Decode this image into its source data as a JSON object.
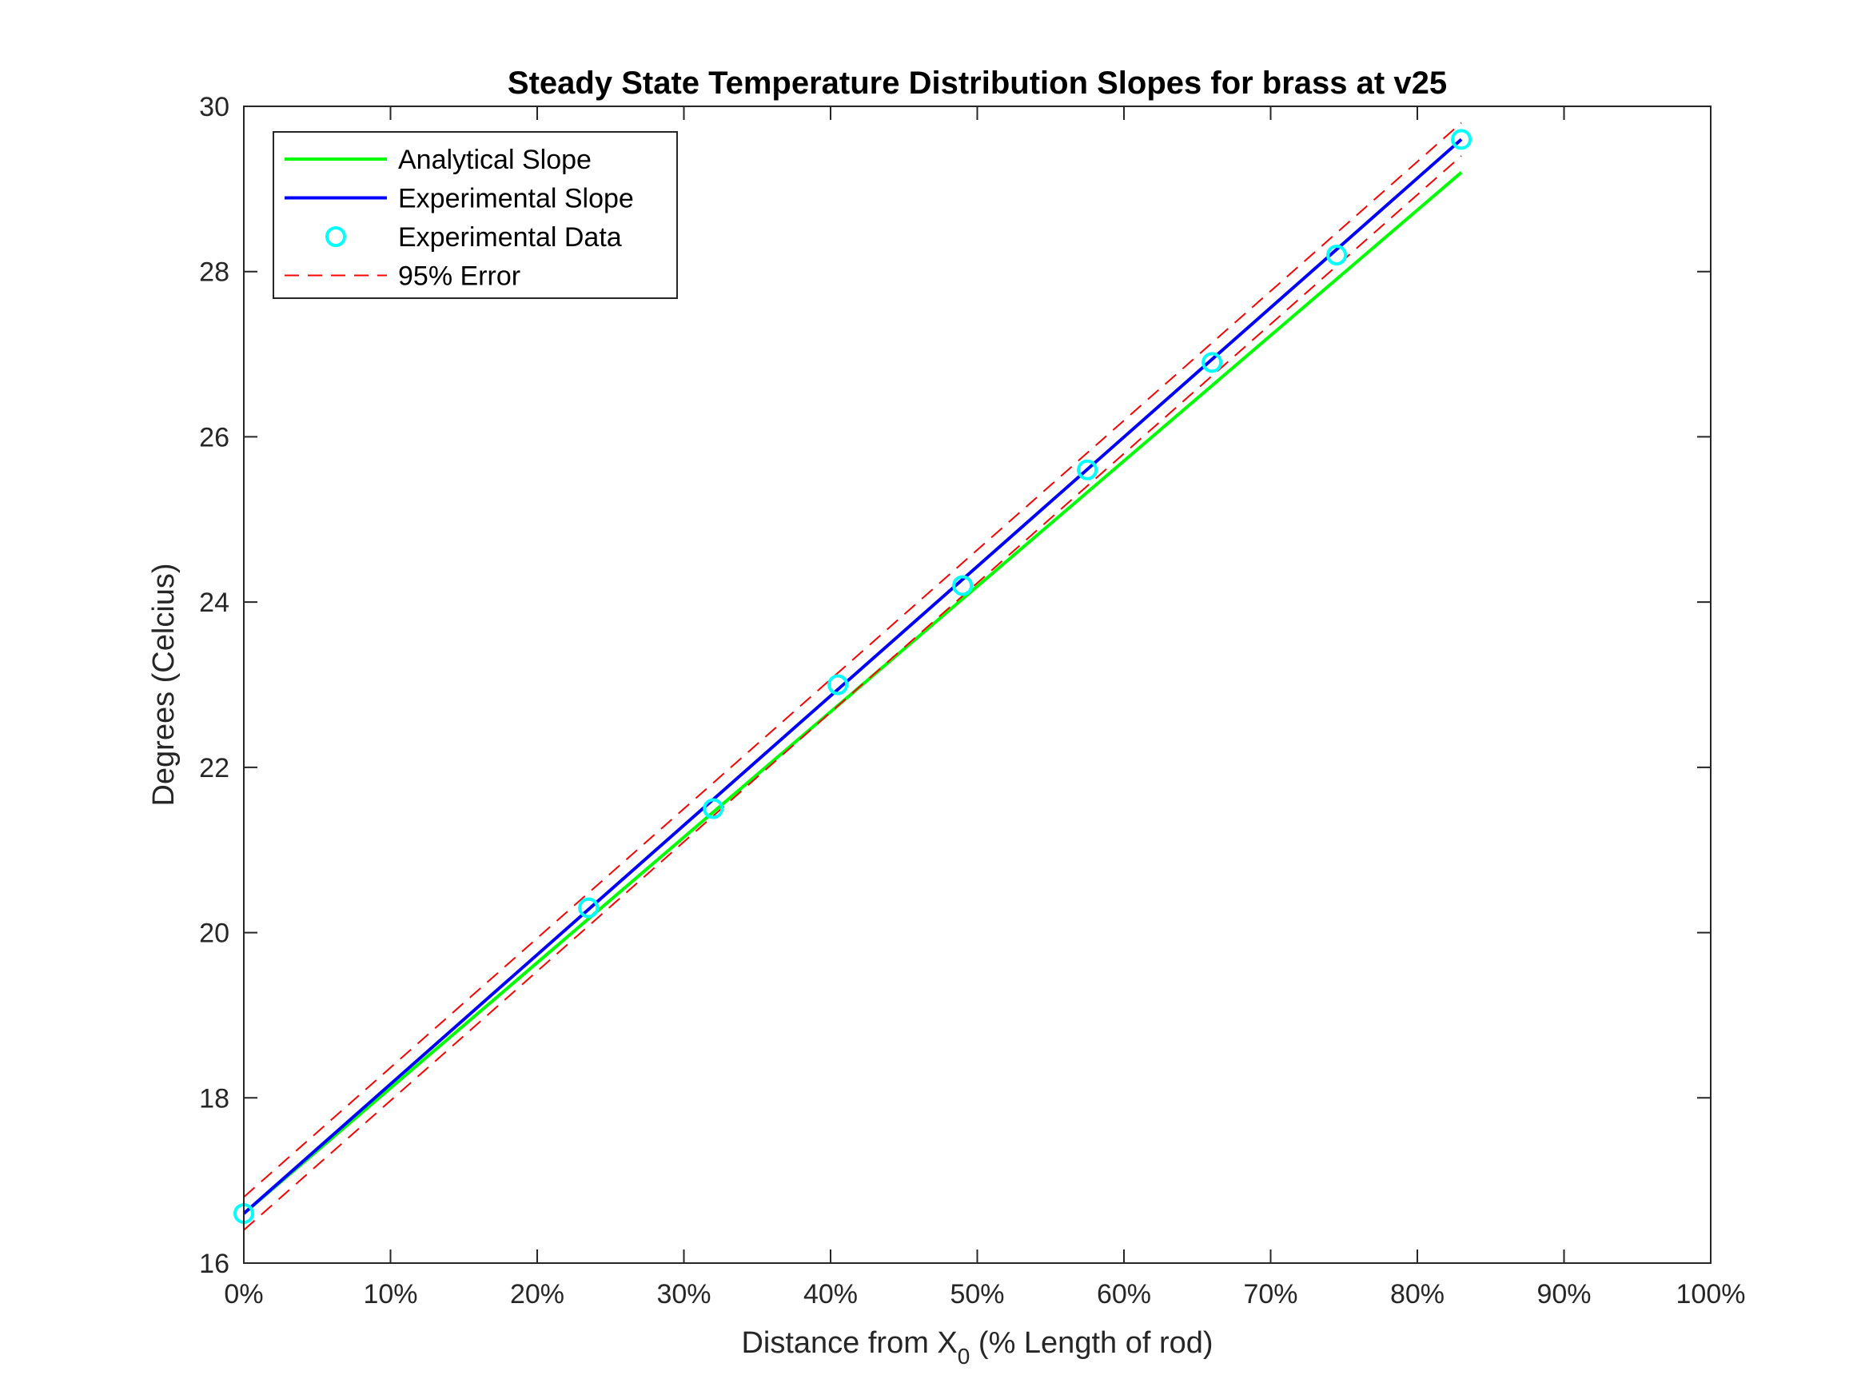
{
  "chart_data": {
    "type": "line",
    "title": "Steady State Temperature Distribution Slopes for brass at v25",
    "xlabel": {
      "prefix": "Distance from X",
      "subscript": "0",
      "suffix": " (% Length of rod)"
    },
    "ylabel": "Degrees (Celcius)",
    "xlim": [
      0,
      1
    ],
    "ylim": [
      16,
      30
    ],
    "x_ticks": [
      0,
      0.1,
      0.2,
      0.3,
      0.4,
      0.5,
      0.6,
      0.7,
      0.8,
      0.9,
      1.0
    ],
    "x_tick_labels": [
      "0%",
      "10%",
      "20%",
      "30%",
      "40%",
      "50%",
      "60%",
      "70%",
      "80%",
      "90%",
      "100%"
    ],
    "y_ticks": [
      16,
      18,
      20,
      22,
      24,
      26,
      28,
      30
    ],
    "y_tick_labels": [
      "16",
      "18",
      "20",
      "22",
      "24",
      "26",
      "28",
      "30"
    ],
    "grid": false,
    "legend_position": "top-left",
    "series": [
      {
        "name": "Analytical Slope",
        "style": "solid",
        "color": "#00ff00",
        "marker": "none",
        "x": [
          0,
          0.83
        ],
        "y": [
          16.6,
          29.2
        ]
      },
      {
        "name": "Experimental Slope",
        "style": "solid",
        "color": "#0000ff",
        "marker": "none",
        "x": [
          0,
          0.83
        ],
        "y": [
          16.6,
          29.6
        ]
      },
      {
        "name": "Experimental Data",
        "style": "none",
        "color": "#00ffff",
        "marker": "circle",
        "x": [
          0,
          0.235,
          0.32,
          0.405,
          0.49,
          0.575,
          0.66,
          0.745,
          0.83
        ],
        "y": [
          16.6,
          20.3,
          21.5,
          23.0,
          24.2,
          25.6,
          26.9,
          28.2,
          29.6
        ]
      },
      {
        "name": "95% Error",
        "style": "dashed",
        "color": "#ff0000",
        "marker": "none",
        "bounds": [
          {
            "x": [
              0,
              0.83
            ],
            "y": [
              16.8,
              29.8
            ]
          },
          {
            "x": [
              0,
              0.83
            ],
            "y": [
              16.4,
              29.4
            ]
          }
        ]
      }
    ]
  }
}
